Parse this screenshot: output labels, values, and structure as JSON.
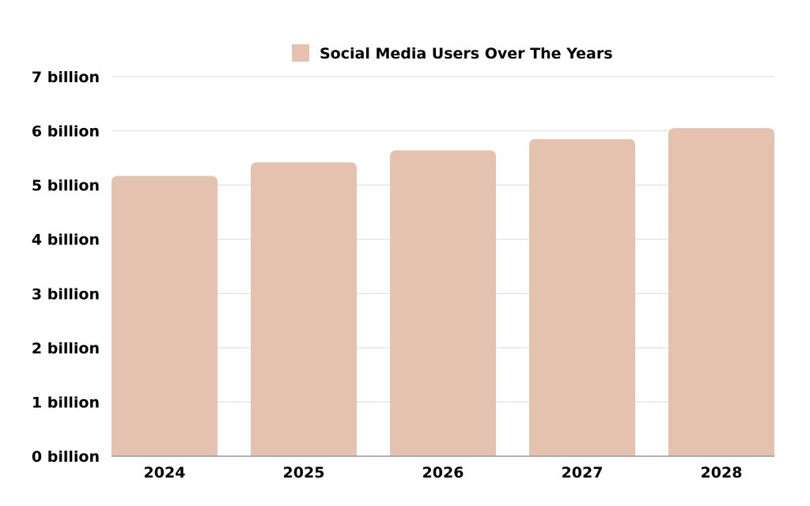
{
  "chart_data": {
    "type": "bar",
    "categories": [
      "2024",
      "2025",
      "2026",
      "2027",
      "2028"
    ],
    "series": [
      {
        "name": "Social Media Users Over The Years",
        "values": [
          5.17,
          5.42,
          5.64,
          5.85,
          6.05
        ]
      }
    ],
    "value_unit": "billion",
    "y_tick_labels": [
      "0 billion",
      "1 billion",
      "2 billion",
      "3 billion",
      "4 billion",
      "5 billion",
      "6 billion",
      "7 billion"
    ],
    "ylim": [
      0,
      7
    ],
    "grid": true,
    "legend_position": "top-center",
    "xlabel": "",
    "ylabel": "",
    "colors": {
      "bar": "#E4C2AF",
      "grid": "#D9D9D9",
      "axis": "#999999",
      "text": "#000000"
    }
  }
}
